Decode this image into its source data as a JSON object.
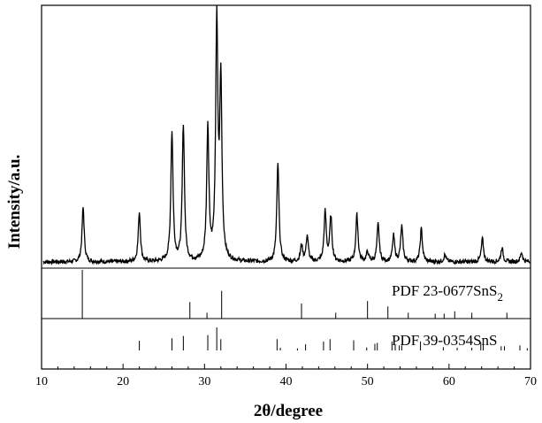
{
  "chart_data": {
    "type": "line",
    "title": "",
    "xlabel": "2θ/degree",
    "ylabel": "Intensity/a.u.",
    "xlim": [
      10,
      70
    ],
    "x_ticks": [
      "10",
      "20",
      "30",
      "40",
      "50",
      "60",
      "70"
    ],
    "grid": false,
    "y_scale": "arbitrary (no tick labels)",
    "series": [
      {
        "name": "",
        "description_peaks": true,
        "baseline": 0.0,
        "peaks": [
          {
            "x": 15.1,
            "y": 0.23
          },
          {
            "x": 22.0,
            "y": 0.21
          },
          {
            "x": 26.0,
            "y": 0.55
          },
          {
            "x": 27.4,
            "y": 0.58
          },
          {
            "x": 30.4,
            "y": 0.57
          },
          {
            "x": 31.5,
            "y": 1.0
          },
          {
            "x": 32.0,
            "y": 0.75
          },
          {
            "x": 39.0,
            "y": 0.42
          },
          {
            "x": 41.9,
            "y": 0.07
          },
          {
            "x": 42.6,
            "y": 0.11
          },
          {
            "x": 44.8,
            "y": 0.21
          },
          {
            "x": 45.5,
            "y": 0.19
          },
          {
            "x": 48.7,
            "y": 0.2
          },
          {
            "x": 50.0,
            "y": 0.04
          },
          {
            "x": 51.3,
            "y": 0.16
          },
          {
            "x": 53.2,
            "y": 0.11
          },
          {
            "x": 54.2,
            "y": 0.15
          },
          {
            "x": 56.6,
            "y": 0.14
          },
          {
            "x": 59.5,
            "y": 0.03
          },
          {
            "x": 64.1,
            "y": 0.1
          },
          {
            "x": 66.5,
            "y": 0.06
          },
          {
            "x": 68.9,
            "y": 0.04
          }
        ]
      }
    ],
    "reference_patterns": [
      {
        "label_prefix": "PDF 23-0677SnS",
        "label_subscript": "2",
        "lines": [
          {
            "x": 15.0,
            "h": 1.0
          },
          {
            "x": 28.2,
            "h": 0.34
          },
          {
            "x": 30.3,
            "h": 0.12
          },
          {
            "x": 32.1,
            "h": 0.57
          },
          {
            "x": 41.9,
            "h": 0.31
          },
          {
            "x": 46.1,
            "h": 0.12
          },
          {
            "x": 50.0,
            "h": 0.36
          },
          {
            "x": 52.5,
            "h": 0.25
          },
          {
            "x": 55.0,
            "h": 0.12
          },
          {
            "x": 58.3,
            "h": 0.1
          },
          {
            "x": 59.4,
            "h": 0.1
          },
          {
            "x": 60.7,
            "h": 0.15
          },
          {
            "x": 62.8,
            "h": 0.12
          },
          {
            "x": 67.1,
            "h": 0.12
          }
        ]
      },
      {
        "label_prefix": "PDF 39-0354SnS",
        "label_subscript": "",
        "lines": [
          {
            "x": 22.0,
            "h": 0.42
          },
          {
            "x": 26.0,
            "h": 0.53
          },
          {
            "x": 27.4,
            "h": 0.63
          },
          {
            "x": 30.4,
            "h": 0.67
          },
          {
            "x": 31.5,
            "h": 1.0
          },
          {
            "x": 32.0,
            "h": 0.49
          },
          {
            "x": 38.9,
            "h": 0.49
          },
          {
            "x": 39.3,
            "h": 0.12
          },
          {
            "x": 41.4,
            "h": 0.09
          },
          {
            "x": 42.4,
            "h": 0.27
          },
          {
            "x": 44.6,
            "h": 0.39
          },
          {
            "x": 45.4,
            "h": 0.49
          },
          {
            "x": 48.3,
            "h": 0.44
          },
          {
            "x": 49.9,
            "h": 0.13
          },
          {
            "x": 50.9,
            "h": 0.29
          },
          {
            "x": 51.2,
            "h": 0.33
          },
          {
            "x": 53.0,
            "h": 0.39
          },
          {
            "x": 53.4,
            "h": 0.25
          },
          {
            "x": 53.9,
            "h": 0.22
          },
          {
            "x": 54.2,
            "h": 0.22
          },
          {
            "x": 56.5,
            "h": 0.39
          },
          {
            "x": 59.3,
            "h": 0.14
          },
          {
            "x": 61.0,
            "h": 0.12
          },
          {
            "x": 62.8,
            "h": 0.12
          },
          {
            "x": 63.9,
            "h": 0.35
          },
          {
            "x": 64.2,
            "h": 0.25
          },
          {
            "x": 66.4,
            "h": 0.18
          },
          {
            "x": 66.8,
            "h": 0.18
          },
          {
            "x": 68.7,
            "h": 0.22
          },
          {
            "x": 69.6,
            "h": 0.1
          }
        ]
      }
    ]
  }
}
